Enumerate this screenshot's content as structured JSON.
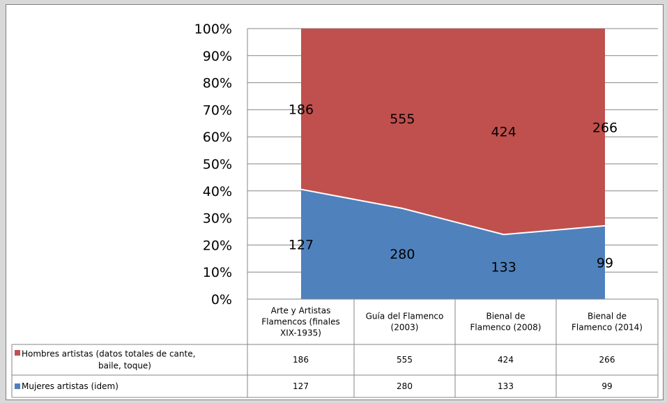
{
  "chart_data": {
    "type": "area",
    "stacked": "percent",
    "categories": [
      [
        "Arte y Artistas",
        "Flamencos (finales",
        "XIX-1935)"
      ],
      [
        "Guía del Flamenco",
        "(2003)"
      ],
      [
        "Bienal de",
        "Flamenco (2008)"
      ],
      [
        "Bienal de",
        "Flamenco (2014)"
      ]
    ],
    "yticks": [
      "0%",
      "10%",
      "20%",
      "30%",
      "40%",
      "50%",
      "60%",
      "70%",
      "80%",
      "90%",
      "100%"
    ],
    "ylim": [
      0,
      100
    ],
    "grid": true,
    "series": [
      {
        "name": [
          "Hombres artistas (datos totales de cante,",
          "baile, toque)"
        ],
        "color": "#c0504d",
        "values": [
          186,
          555,
          424,
          266
        ]
      },
      {
        "name": [
          "Mujeres artistas (idem)"
        ],
        "color": "#4f81bd",
        "values": [
          127,
          280,
          133,
          99
        ]
      }
    ],
    "data_table": true
  }
}
